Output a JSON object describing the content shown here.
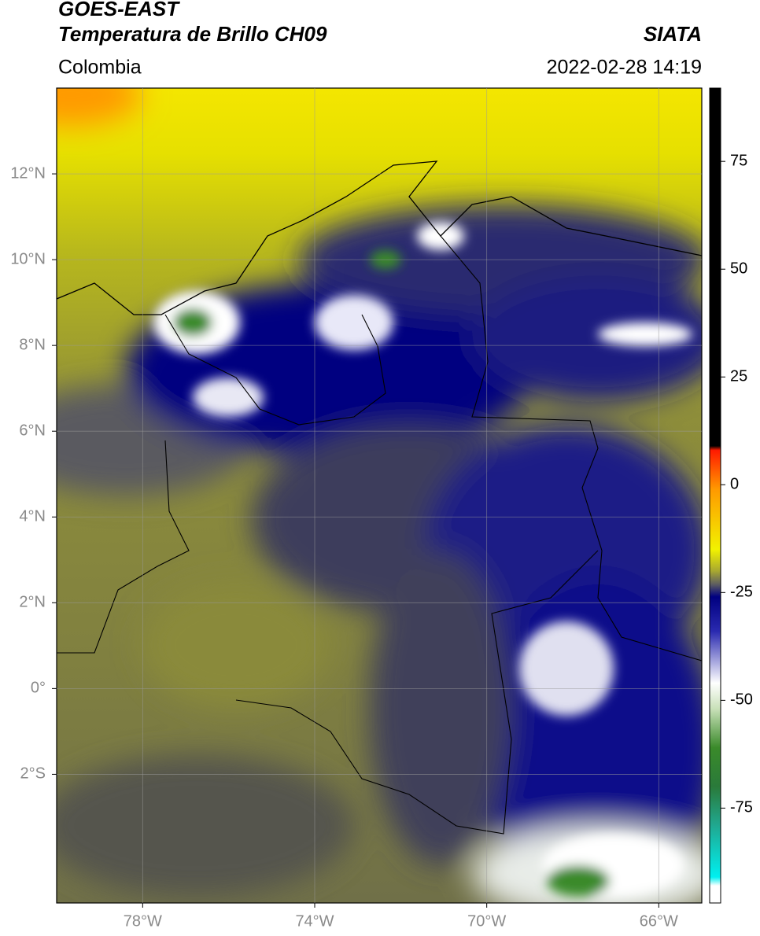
{
  "header": {
    "title": "GOES-EAST",
    "subtitle": "Temperatura de Brillo CH09",
    "source": "SIATA",
    "region": "Colombia",
    "datetime": "2022-02-28 14:19"
  },
  "map": {
    "type": "map",
    "xlim": [
      -80,
      -65
    ],
    "ylim": [
      -5,
      14
    ],
    "xticks": [
      {
        "value": -78,
        "label": "78°W"
      },
      {
        "value": -74,
        "label": "74°W"
      },
      {
        "value": -70,
        "label": "70°W"
      },
      {
        "value": -66,
        "label": "66°W"
      }
    ],
    "yticks": [
      {
        "value": 12,
        "label": "12°N"
      },
      {
        "value": 10,
        "label": "10°N"
      },
      {
        "value": 8,
        "label": "8°N"
      },
      {
        "value": 6,
        "label": "6°N"
      },
      {
        "value": 4,
        "label": "4°N"
      },
      {
        "value": 2,
        "label": "2°N"
      },
      {
        "value": 0,
        "label": "0°"
      },
      {
        "value": -2,
        "label": "2°S"
      }
    ],
    "grid": true
  },
  "colorbar": {
    "clim": [
      -97,
      92
    ],
    "ticks": [
      75,
      50,
      25,
      0,
      -25,
      -50,
      -75
    ],
    "colormap": [
      {
        "value": 92,
        "color": "#000000"
      },
      {
        "value": 9,
        "color": "#000000"
      },
      {
        "value": 8,
        "color": "#ff1a00"
      },
      {
        "value": -1,
        "color": "#ff9900"
      },
      {
        "value": -15,
        "color": "#f2f200"
      },
      {
        "value": -20,
        "color": "#a8a830"
      },
      {
        "value": -23,
        "color": "#606060"
      },
      {
        "value": -26,
        "color": "#000080"
      },
      {
        "value": -34,
        "color": "#2a2ab0"
      },
      {
        "value": -46,
        "color": "#ffffff"
      },
      {
        "value": -52,
        "color": "#c8e0b8"
      },
      {
        "value": -61,
        "color": "#3a8a2a"
      },
      {
        "value": -70,
        "color": "#2a7a3a"
      },
      {
        "value": -79,
        "color": "#20a890"
      },
      {
        "value": -91,
        "color": "#00f0f0"
      },
      {
        "value": -93,
        "color": "#ffffff"
      },
      {
        "value": -97,
        "color": "#ffffff"
      }
    ]
  }
}
